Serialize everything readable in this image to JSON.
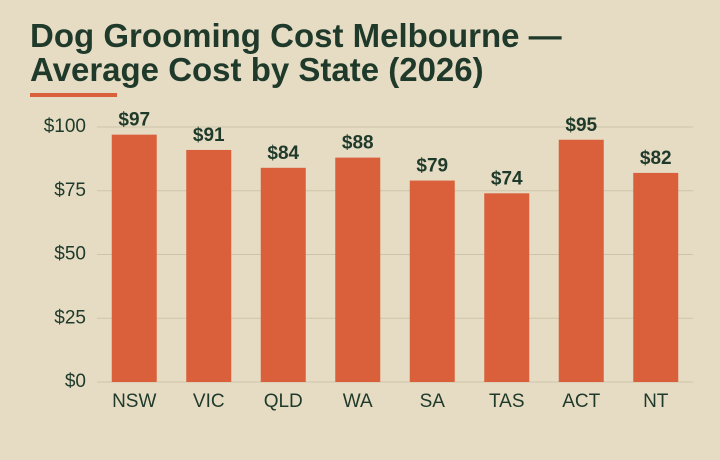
{
  "chart_data": {
    "type": "bar",
    "title": "Dog Grooming Cost Melbourne — Average Cost by State (2026)",
    "categories": [
      "NSW",
      "VIC",
      "QLD",
      "WA",
      "SA",
      "TAS",
      "ACT",
      "NT"
    ],
    "values": [
      97,
      91,
      84,
      88,
      79,
      74,
      95,
      82
    ],
    "value_labels": [
      "$97",
      "$91",
      "$84",
      "$88",
      "$79",
      "$74",
      "$95",
      "$82"
    ],
    "color": "#d9603b",
    "ylim": [
      0,
      100
    ],
    "yticks": [
      {
        "value": 0,
        "label": "$0"
      },
      {
        "value": 25,
        "label": "$25"
      },
      {
        "value": 50,
        "label": "$50"
      },
      {
        "value": 75,
        "label": "$75"
      },
      {
        "value": 100,
        "label": "$100"
      }
    ],
    "grid": true
  }
}
